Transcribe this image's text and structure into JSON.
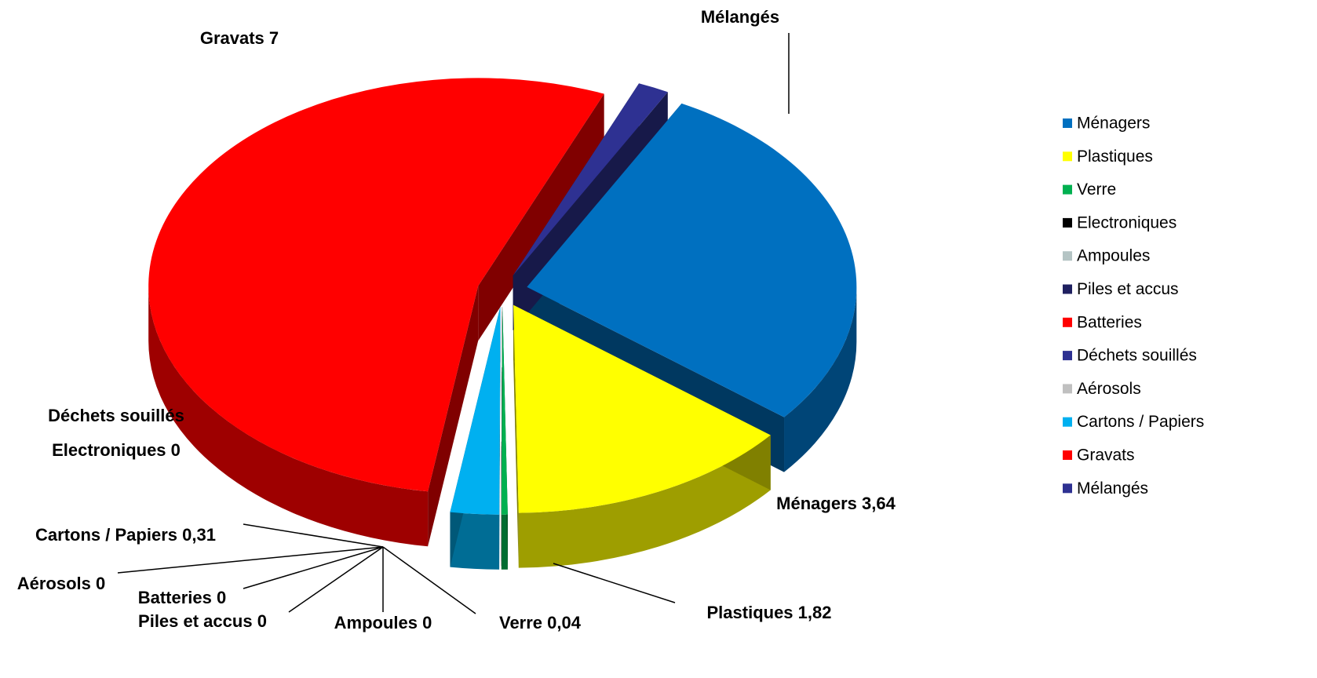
{
  "chart_data": {
    "type": "pie3d",
    "categories": [
      "Ménagers",
      "Plastiques",
      "Verre",
      "Electroniques",
      "Ampoules",
      "Piles et accus",
      "Batteries",
      "Déchets souillés",
      "Aérosols",
      "Cartons / Papiers",
      "Gravats",
      "Mélangés"
    ],
    "values": [
      3.64,
      1.82,
      0.04,
      0,
      0,
      0,
      0,
      0,
      0,
      0.31,
      7,
      0.2
    ],
    "value_labels": [
      "3,64",
      "1,82",
      "0,04",
      "0",
      "0",
      "0",
      "0",
      null,
      "0",
      "0,31",
      "7",
      null
    ],
    "colors": [
      "#0070c0",
      "#ffff00",
      "#00b050",
      "#000000",
      "#b4c4c4",
      "#1f2060",
      "#ff0000",
      "#2e3192",
      "#c0c0c0",
      "#00b0f0",
      "#ff0000",
      "#2e3192"
    ],
    "legend": "right"
  }
}
